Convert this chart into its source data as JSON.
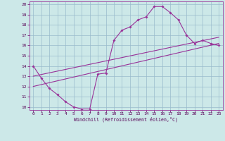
{
  "bg_color": "#cce8e8",
  "line_color": "#993399",
  "grid_color": "#99bbcc",
  "xlim": [
    -0.5,
    23.5
  ],
  "ylim": [
    9.7,
    20.3
  ],
  "xticks": [
    0,
    1,
    2,
    3,
    4,
    5,
    6,
    7,
    8,
    9,
    10,
    11,
    12,
    13,
    14,
    15,
    16,
    17,
    18,
    19,
    20,
    21,
    22,
    23
  ],
  "yticks": [
    10,
    11,
    12,
    13,
    14,
    15,
    16,
    17,
    18,
    19,
    20
  ],
  "xlabel": "Windchill (Refroidissement éolien,°C)",
  "line1_x": [
    0,
    1,
    2,
    3,
    4,
    5,
    6,
    7,
    8,
    9,
    10,
    11,
    12,
    13,
    14,
    15,
    16,
    17,
    18,
    19,
    20,
    21,
    22,
    23
  ],
  "line1_y": [
    14.0,
    12.8,
    11.8,
    11.2,
    10.5,
    10.0,
    9.8,
    9.8,
    13.2,
    13.3,
    16.5,
    17.5,
    17.8,
    18.5,
    18.8,
    19.8,
    19.8,
    19.2,
    18.5,
    17.0,
    16.2,
    16.5,
    16.2,
    16.0
  ],
  "line2_x": [
    0,
    23
  ],
  "line2_y": [
    13.0,
    16.8
  ],
  "line3_x": [
    0,
    23
  ],
  "line3_y": [
    12.0,
    16.2
  ]
}
